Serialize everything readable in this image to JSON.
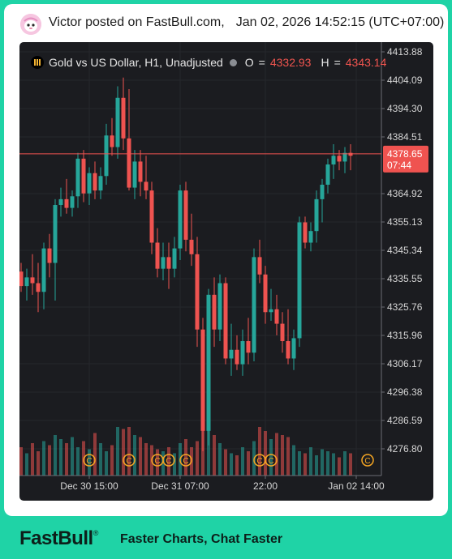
{
  "post": {
    "author": "Victor",
    "posted_text": "posted on FastBull.com",
    "separator": ",",
    "timestamp": "Jan 02, 2026 14:52:15 (UTC+07:00)"
  },
  "legend": {
    "symbol": "Gold vs US Dollar, H1, Unadjusted",
    "open_key": "O",
    "open_value": "4332.93",
    "high_key": "H",
    "high_value": "4343.14"
  },
  "footer": {
    "brand": "FastBull",
    "registered": "®",
    "tagline": "Faster Charts, Chat Faster"
  },
  "colors": {
    "up": "#26a69a",
    "down": "#ef5350",
    "price_line": "#ef5350",
    "price_label_bg": "#ef5350",
    "background": "#1b1c20",
    "event_marker": "#f5a623"
  },
  "chart_data": {
    "type": "candlestick",
    "instrument": "Gold vs US Dollar",
    "timeframe": "H1",
    "y_ticks": [
      "4413.88",
      "4404.09",
      "4394.30",
      "4384.51",
      "4364.92",
      "4355.13",
      "4345.34",
      "4335.55",
      "4325.76",
      "4315.96",
      "4306.17",
      "4296.38",
      "4286.59",
      "4276.80"
    ],
    "x_ticks": [
      {
        "label": "Dec 30 15:00",
        "index": 12
      },
      {
        "label": "Dec 31 07:00",
        "index": 28
      },
      {
        "label": "22:00",
        "index": 43
      },
      {
        "label": "Jan 02 14:00",
        "index": 59
      }
    ],
    "current_price": "4378.65",
    "countdown": "07:44",
    "event_marker_label": "C",
    "event_markers": [
      12,
      19,
      24,
      26,
      29,
      42,
      44,
      61
    ],
    "candles": [
      {
        "o": 4338,
        "h": 4341,
        "l": 4331,
        "c": 4333
      },
      {
        "o": 4333,
        "h": 4339,
        "l": 4328,
        "c": 4336
      },
      {
        "o": 4336,
        "h": 4344,
        "l": 4330,
        "c": 4334
      },
      {
        "o": 4334,
        "h": 4341,
        "l": 4324,
        "c": 4331
      },
      {
        "o": 4331,
        "h": 4348,
        "l": 4325,
        "c": 4346
      },
      {
        "o": 4346,
        "h": 4351,
        "l": 4336,
        "c": 4341
      },
      {
        "o": 4341,
        "h": 4363,
        "l": 4328,
        "c": 4361
      },
      {
        "o": 4361,
        "h": 4367,
        "l": 4357,
        "c": 4363
      },
      {
        "o": 4363,
        "h": 4370,
        "l": 4358,
        "c": 4360
      },
      {
        "o": 4360,
        "h": 4366,
        "l": 4357,
        "c": 4364
      },
      {
        "o": 4364,
        "h": 4379,
        "l": 4360,
        "c": 4377
      },
      {
        "o": 4377,
        "h": 4380,
        "l": 4362,
        "c": 4365
      },
      {
        "o": 4365,
        "h": 4374,
        "l": 4361,
        "c": 4372
      },
      {
        "o": 4372,
        "h": 4376,
        "l": 4363,
        "c": 4366
      },
      {
        "o": 4366,
        "h": 4374,
        "l": 4363,
        "c": 4371
      },
      {
        "o": 4371,
        "h": 4389,
        "l": 4368,
        "c": 4385
      },
      {
        "o": 4385,
        "h": 4391,
        "l": 4378,
        "c": 4381
      },
      {
        "o": 4381,
        "h": 4402,
        "l": 4377,
        "c": 4398
      },
      {
        "o": 4398,
        "h": 4405,
        "l": 4380,
        "c": 4384
      },
      {
        "o": 4384,
        "h": 4401,
        "l": 4366,
        "c": 4367
      },
      {
        "o": 4367,
        "h": 4380,
        "l": 4363,
        "c": 4376
      },
      {
        "o": 4376,
        "h": 4380,
        "l": 4364,
        "c": 4369
      },
      {
        "o": 4369,
        "h": 4378,
        "l": 4363,
        "c": 4366
      },
      {
        "o": 4366,
        "h": 4369,
        "l": 4344,
        "c": 4348
      },
      {
        "o": 4348,
        "h": 4353,
        "l": 4336,
        "c": 4339
      },
      {
        "o": 4339,
        "h": 4348,
        "l": 4335,
        "c": 4343
      },
      {
        "o": 4343,
        "h": 4348,
        "l": 4332,
        "c": 4339
      },
      {
        "o": 4339,
        "h": 4350,
        "l": 4336,
        "c": 4346
      },
      {
        "o": 4346,
        "h": 4368,
        "l": 4342,
        "c": 4366
      },
      {
        "o": 4366,
        "h": 4369,
        "l": 4345,
        "c": 4349
      },
      {
        "o": 4349,
        "h": 4358,
        "l": 4340,
        "c": 4344
      },
      {
        "o": 4344,
        "h": 4350,
        "l": 4312,
        "c": 4318
      },
      {
        "o": 4318,
        "h": 4322,
        "l": 4276,
        "c": 4283
      },
      {
        "o": 4283,
        "h": 4332,
        "l": 4278,
        "c": 4330
      },
      {
        "o": 4330,
        "h": 4336,
        "l": 4312,
        "c": 4318
      },
      {
        "o": 4318,
        "h": 4337,
        "l": 4314,
        "c": 4334
      },
      {
        "o": 4334,
        "h": 4336,
        "l": 4306,
        "c": 4308
      },
      {
        "o": 4308,
        "h": 4320,
        "l": 4302,
        "c": 4311
      },
      {
        "o": 4311,
        "h": 4316,
        "l": 4304,
        "c": 4306
      },
      {
        "o": 4306,
        "h": 4318,
        "l": 4302,
        "c": 4314
      },
      {
        "o": 4314,
        "h": 4322,
        "l": 4306,
        "c": 4310
      },
      {
        "o": 4310,
        "h": 4346,
        "l": 4307,
        "c": 4343
      },
      {
        "o": 4343,
        "h": 4349,
        "l": 4334,
        "c": 4337
      },
      {
        "o": 4337,
        "h": 4340,
        "l": 4320,
        "c": 4324
      },
      {
        "o": 4324,
        "h": 4332,
        "l": 4321,
        "c": 4325
      },
      {
        "o": 4325,
        "h": 4330,
        "l": 4316,
        "c": 4320
      },
      {
        "o": 4320,
        "h": 4324,
        "l": 4310,
        "c": 4314
      },
      {
        "o": 4314,
        "h": 4325,
        "l": 4306,
        "c": 4308
      },
      {
        "o": 4308,
        "h": 4318,
        "l": 4304,
        "c": 4315
      },
      {
        "o": 4315,
        "h": 4357,
        "l": 4312,
        "c": 4355
      },
      {
        "o": 4355,
        "h": 4357,
        "l": 4346,
        "c": 4348
      },
      {
        "o": 4348,
        "h": 4355,
        "l": 4345,
        "c": 4352
      },
      {
        "o": 4352,
        "h": 4366,
        "l": 4348,
        "c": 4363
      },
      {
        "o": 4363,
        "h": 4370,
        "l": 4355,
        "c": 4368
      },
      {
        "o": 4368,
        "h": 4377,
        "l": 4365,
        "c": 4375
      },
      {
        "o": 4375,
        "h": 4382,
        "l": 4370,
        "c": 4378
      },
      {
        "o": 4378,
        "h": 4380,
        "l": 4373,
        "c": 4376
      },
      {
        "o": 4376,
        "h": 4381,
        "l": 4372,
        "c": 4379
      },
      {
        "o": 4379,
        "h": 4382,
        "l": 4373,
        "c": 4378
      }
    ],
    "volumes": [
      14,
      11,
      16,
      12,
      17,
      15,
      20,
      18,
      16,
      19,
      14,
      17,
      13,
      21,
      16,
      12,
      15,
      24,
      23,
      24,
      20,
      19,
      16,
      15,
      13,
      12,
      14,
      11,
      16,
      18,
      14,
      17,
      24,
      28,
      20,
      16,
      13,
      11,
      10,
      14,
      12,
      17,
      24,
      22,
      18,
      21,
      20,
      19,
      15,
      12,
      11,
      14,
      10,
      13,
      12,
      11,
      9,
      12,
      11
    ]
  }
}
